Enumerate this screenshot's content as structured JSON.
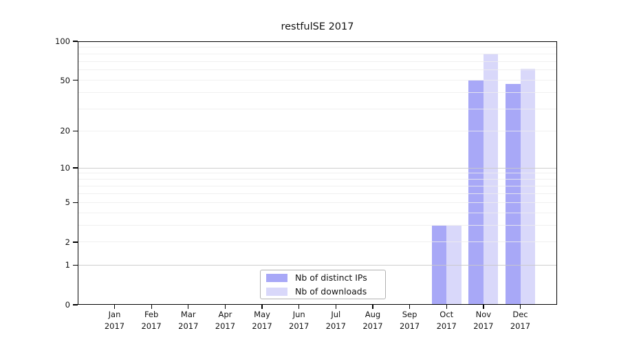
{
  "chart_data": {
    "type": "bar",
    "title": "restfulSE 2017",
    "xlabel": "",
    "ylabel": "",
    "categories": [
      "Jan",
      "Feb",
      "Mar",
      "Apr",
      "May",
      "Jun",
      "Jul",
      "Aug",
      "Sep",
      "Oct",
      "Nov",
      "Dec"
    ],
    "category_year": "2017",
    "series": [
      {
        "name": "Nb of distinct IPs",
        "color": "#a8a8f7",
        "values": [
          0,
          0,
          0,
          0,
          0,
          0,
          0,
          0,
          0,
          3,
          50,
          47
        ]
      },
      {
        "name": "Nb of downloads",
        "color": "#d9d8fa",
        "values": [
          0,
          0,
          0,
          0,
          0,
          0,
          0,
          0,
          0,
          3,
          80,
          61
        ]
      }
    ],
    "yscale": "log1p",
    "ylim": [
      0,
      100
    ],
    "y_ticks": [
      0,
      1,
      2,
      5,
      10,
      20,
      50,
      100
    ],
    "grid": {
      "minor_values": [
        2,
        3,
        4,
        5,
        6,
        7,
        8,
        9,
        20,
        30,
        40,
        50,
        60,
        70,
        80,
        90
      ],
      "major_values": [
        1,
        10
      ],
      "minor_color": "#ededed",
      "major_color": "#c9c9c9"
    },
    "legend": {
      "position": "bottom-center"
    },
    "colors": {
      "axis": "#000000",
      "background": "#ffffff"
    }
  }
}
